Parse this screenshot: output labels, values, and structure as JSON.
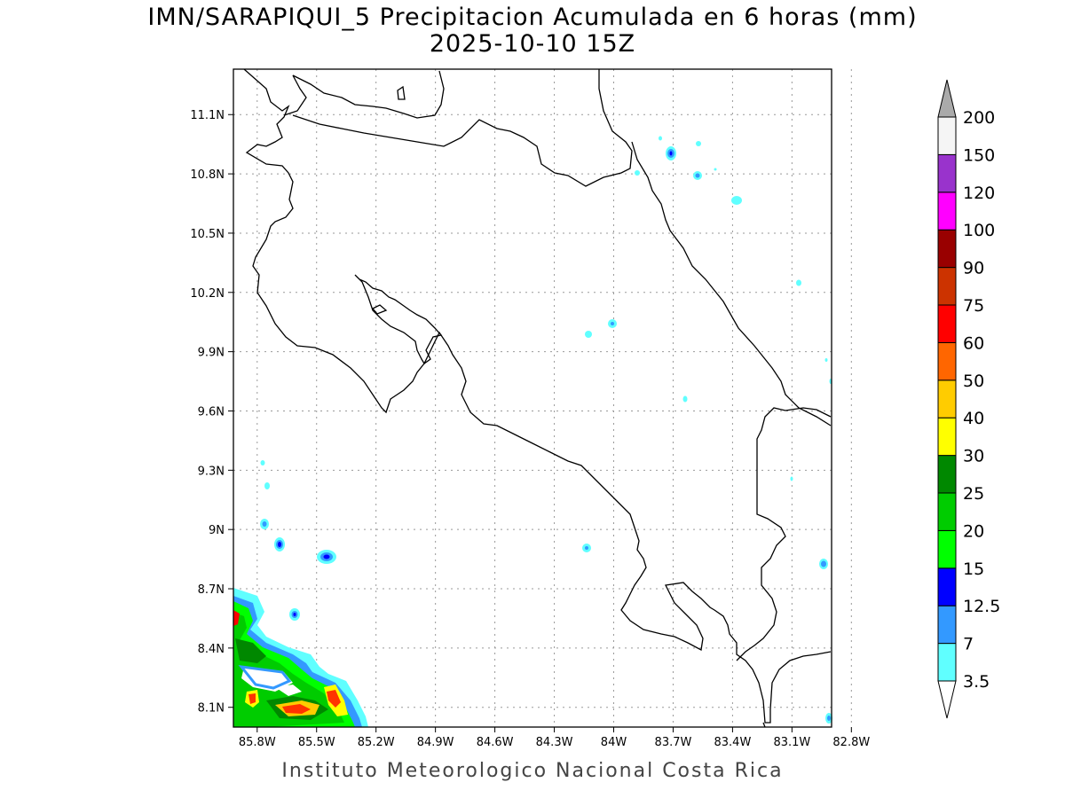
{
  "title_line1": "IMN/SARAPIQUI_5 Precipitacion Acumulada en 6 horas (mm)",
  "title_line2": "2025-10-10 15Z",
  "footer": "Instituto Meteorologico Nacional Costa Rica",
  "map": {
    "lon_range": [
      -85.92,
      -82.9
    ],
    "lat_range": [
      8.0,
      11.33
    ],
    "lat_ticks": [
      {
        "label": "11.1N",
        "value": 11.1
      },
      {
        "label": "10.8N",
        "value": 10.8
      },
      {
        "label": "10.5N",
        "value": 10.5
      },
      {
        "label": "10.2N",
        "value": 10.2
      },
      {
        "label": "9.9N",
        "value": 9.9
      },
      {
        "label": "9.6N",
        "value": 9.6
      },
      {
        "label": "9.3N",
        "value": 9.3
      },
      {
        "label": "9N",
        "value": 9.0
      },
      {
        "label": "8.7N",
        "value": 8.7
      },
      {
        "label": "8.4N",
        "value": 8.4
      },
      {
        "label": "8.1N",
        "value": 8.1
      }
    ],
    "lon_ticks": [
      {
        "label": "85.8W",
        "value": -85.8
      },
      {
        "label": "85.5W",
        "value": -85.5
      },
      {
        "label": "85.2W",
        "value": -85.2
      },
      {
        "label": "84.9W",
        "value": -84.9
      },
      {
        "label": "84.6W",
        "value": -84.6
      },
      {
        "label": "84.3W",
        "value": -84.3
      },
      {
        "label": "84W",
        "value": -84.0
      },
      {
        "label": "83.7W",
        "value": -83.7
      },
      {
        "label": "83.4W",
        "value": -83.4
      },
      {
        "label": "83.1W",
        "value": -83.1
      },
      {
        "label": "82.8W",
        "value": -82.8
      }
    ],
    "grid": true
  },
  "colorbar": {
    "levels": [
      {
        "label": "3.5",
        "color": "#60ffff"
      },
      {
        "label": "7",
        "color": "#3399ff"
      },
      {
        "label": "12.5",
        "color": "#0000ff"
      },
      {
        "label": "15",
        "color": "#00ff00"
      },
      {
        "label": "20",
        "color": "#00cc00"
      },
      {
        "label": "25",
        "color": "#008800"
      },
      {
        "label": "30",
        "color": "#ffff00"
      },
      {
        "label": "40",
        "color": "#ffcc00"
      },
      {
        "label": "50",
        "color": "#ff6600"
      },
      {
        "label": "60",
        "color": "#ff0000"
      },
      {
        "label": "75",
        "color": "#cc3300"
      },
      {
        "label": "90",
        "color": "#990000"
      },
      {
        "label": "100",
        "color": "#ff00ff"
      },
      {
        "label": "120",
        "color": "#9933cc"
      },
      {
        "label": "150",
        "color": "#f5f5f5"
      },
      {
        "label": "200",
        "color": "#aaaaaa"
      }
    ]
  }
}
